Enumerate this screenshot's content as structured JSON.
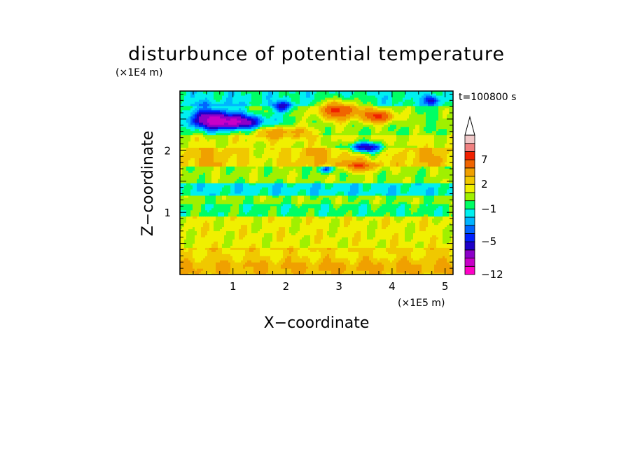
{
  "chart_data": {
    "type": "heatmap",
    "title": "disturbunce of potential temperature",
    "y_units": "(×1E4 m)",
    "x_units": "(×1E5 m)",
    "xlabel": "X−coordinate",
    "ylabel": "Z−coordinate",
    "time_label": "t=100800 s",
    "x_ticks": [
      "1",
      "2",
      "3",
      "4",
      "5"
    ],
    "y_ticks": [
      "1",
      "2"
    ],
    "xlim": [
      0,
      5.15
    ],
    "ylim": [
      0,
      2.95
    ],
    "colorbar": {
      "tick_labels": [
        "7",
        "2",
        "−1",
        "−5",
        "−12"
      ],
      "tick_values": [
        7,
        2,
        -1,
        -5,
        -12
      ],
      "levels": [
        {
          "min": -12,
          "max": -10,
          "color": "#ff00c8"
        },
        {
          "min": -10,
          "max": -8,
          "color": "#c800c8"
        },
        {
          "min": -8,
          "max": -6,
          "color": "#8c00c8"
        },
        {
          "min": -6,
          "max": -5,
          "color": "#1e00c8"
        },
        {
          "min": -5,
          "max": -4,
          "color": "#0020ff"
        },
        {
          "min": -4,
          "max": -3,
          "color": "#0064ff"
        },
        {
          "min": -3,
          "max": -2,
          "color": "#00b4ff"
        },
        {
          "min": -2,
          "max": -1,
          "color": "#00f0f0"
        },
        {
          "min": -1,
          "max": 0,
          "color": "#00ff64"
        },
        {
          "min": 0,
          "max": 1,
          "color": "#a0f000"
        },
        {
          "min": 1,
          "max": 2,
          "color": "#f0f000"
        },
        {
          "min": 2,
          "max": 3,
          "color": "#f0c800"
        },
        {
          "min": 3,
          "max": 5,
          "color": "#f0a000"
        },
        {
          "min": 5,
          "max": 7,
          "color": "#f06400"
        },
        {
          "min": 7,
          "max": 9,
          "color": "#f02000"
        },
        {
          "min": 9,
          "max": 11,
          "color": "#f08080"
        },
        {
          "min": 11,
          "max": 13,
          "color": "#f0c8c8"
        }
      ],
      "extends_above": true
    },
    "features": [
      {
        "x": 1.0,
        "z": 2.45,
        "value": -7,
        "sx": 0.7,
        "sz": 0.12
      },
      {
        "x": 0.6,
        "z": 2.55,
        "value": -5,
        "sx": 0.5,
        "sz": 0.18
      },
      {
        "x": 1.95,
        "z": 2.7,
        "value": -5,
        "sx": 0.2,
        "sz": 0.08
      },
      {
        "x": 3.0,
        "z": 2.65,
        "value": 7,
        "sx": 0.4,
        "sz": 0.15
      },
      {
        "x": 3.75,
        "z": 2.55,
        "value": 7,
        "sx": 0.3,
        "sz": 0.1
      },
      {
        "x": 3.5,
        "z": 2.05,
        "value": -7,
        "sx": 0.35,
        "sz": 0.08
      },
      {
        "x": 3.4,
        "z": 1.75,
        "value": 5,
        "sx": 0.35,
        "sz": 0.08
      },
      {
        "x": 2.75,
        "z": 1.7,
        "value": -5,
        "sx": 0.15,
        "sz": 0.06
      },
      {
        "x": 4.75,
        "z": 2.8,
        "value": -5,
        "sx": 0.12,
        "sz": 0.08
      },
      {
        "x": 1.9,
        "z": 2.3,
        "value": 4,
        "sx": 0.6,
        "sz": 0.1
      }
    ]
  }
}
